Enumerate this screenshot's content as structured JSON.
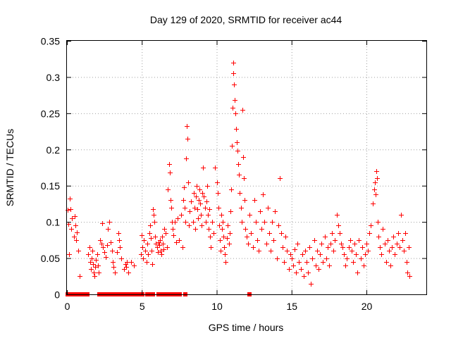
{
  "chart_data": {
    "type": "scatter",
    "title": "Day 129 of 2020, SRMTID for receiver ac44",
    "xlabel": "GPS time / hours",
    "ylabel": "SRMTID / TECUs",
    "xlim": [
      0,
      24
    ],
    "ylim": [
      0,
      0.35
    ],
    "xticks": [
      0,
      5,
      10,
      15,
      20
    ],
    "xtick_labels": [
      "0",
      "5",
      "10",
      "15",
      "20"
    ],
    "yticks": [
      0,
      0.05,
      0.1,
      0.15,
      0.2,
      0.25,
      0.3,
      0.35
    ],
    "ytick_labels": [
      "0",
      "0.05",
      "0.1",
      "0.15",
      "0.2",
      "0.25",
      "0.3",
      "0.35"
    ],
    "grid": true,
    "marker": "plus",
    "series": [
      {
        "name": "SRMTID",
        "color": "#ff0000",
        "points": [
          [
            0.05,
            0.117
          ],
          [
            0.1,
            0.097
          ],
          [
            0.15,
            0.055
          ],
          [
            0.2,
            0.132
          ],
          [
            0.25,
            0.118
          ],
          [
            0.3,
            0.09
          ],
          [
            0.35,
            0.105
          ],
          [
            0.45,
            0.08
          ],
          [
            0.5,
            0.108
          ],
          [
            0.55,
            0.095
          ],
          [
            0.6,
            0.075
          ],
          [
            0.65,
            0.086
          ],
          [
            0.75,
            0.06
          ],
          [
            0.85,
            0.025
          ],
          [
            1.4,
            0.055
          ],
          [
            1.5,
            0.065
          ],
          [
            1.55,
            0.045
          ],
          [
            1.6,
            0.035
          ],
          [
            1.65,
            0.05
          ],
          [
            1.7,
            0.06
          ],
          [
            1.75,
            0.042
          ],
          [
            1.8,
            0.03
          ],
          [
            1.85,
            0.025
          ],
          [
            1.9,
            0.038
          ],
          [
            1.95,
            0.048
          ],
          [
            2.0,
            0.055
          ],
          [
            2.05,
            0.04
          ],
          [
            2.1,
            0.03
          ],
          [
            2.2,
            0.075
          ],
          [
            2.3,
            0.07
          ],
          [
            2.35,
            0.098
          ],
          [
            2.4,
            0.065
          ],
          [
            2.5,
            0.058
          ],
          [
            2.6,
            0.052
          ],
          [
            2.7,
            0.068
          ],
          [
            2.75,
            0.09
          ],
          [
            2.8,
            0.1
          ],
          [
            2.9,
            0.072
          ],
          [
            3.0,
            0.06
          ],
          [
            3.05,
            0.045
          ],
          [
            3.1,
            0.038
          ],
          [
            3.2,
            0.03
          ],
          [
            3.35,
            0.058
          ],
          [
            3.45,
            0.085
          ],
          [
            3.5,
            0.075
          ],
          [
            3.55,
            0.065
          ],
          [
            3.6,
            0.05
          ],
          [
            3.8,
            0.035
          ],
          [
            3.9,
            0.042
          ],
          [
            3.95,
            0.038
          ],
          [
            4.0,
            0.045
          ],
          [
            4.1,
            0.03
          ],
          [
            4.3,
            0.045
          ],
          [
            4.45,
            0.04
          ],
          [
            4.95,
            0.055
          ],
          [
            5.0,
            0.082
          ],
          [
            5.05,
            0.065
          ],
          [
            5.1,
            0.05
          ],
          [
            5.15,
            0.075
          ],
          [
            5.2,
            0.06
          ],
          [
            5.3,
            0.045
          ],
          [
            5.35,
            0.07
          ],
          [
            5.4,
            0.055
          ],
          [
            5.5,
            0.085
          ],
          [
            5.55,
            0.095
          ],
          [
            5.6,
            0.078
          ],
          [
            5.65,
            0.06
          ],
          [
            5.7,
            0.042
          ],
          [
            5.75,
            0.118
          ],
          [
            5.8,
            0.11
          ],
          [
            5.85,
            0.1
          ],
          [
            5.9,
            0.08
          ],
          [
            5.95,
            0.07
          ],
          [
            6.0,
            0.065
          ],
          [
            6.05,
            0.058
          ],
          [
            6.1,
            0.072
          ],
          [
            6.15,
            0.068
          ],
          [
            6.2,
            0.075
          ],
          [
            6.25,
            0.06
          ],
          [
            6.3,
            0.055
          ],
          [
            6.35,
            0.08
          ],
          [
            6.4,
            0.07
          ],
          [
            6.45,
            0.062
          ],
          [
            6.5,
            0.09
          ],
          [
            6.6,
            0.085
          ],
          [
            6.7,
            0.065
          ],
          [
            6.75,
            0.145
          ],
          [
            6.8,
            0.18
          ],
          [
            6.85,
            0.168
          ],
          [
            6.9,
            0.13
          ],
          [
            6.95,
            0.12
          ],
          [
            7.0,
            0.1
          ],
          [
            7.05,
            0.09
          ],
          [
            7.1,
            0.082
          ],
          [
            7.2,
            0.1
          ],
          [
            7.3,
            0.072
          ],
          [
            7.4,
            0.105
          ],
          [
            7.5,
            0.075
          ],
          [
            7.6,
            0.11
          ],
          [
            7.7,
            0.065
          ],
          [
            7.75,
            0.13
          ],
          [
            7.8,
            0.148
          ],
          [
            7.85,
            0.12
          ],
          [
            7.9,
            0.1
          ],
          [
            7.95,
            0.188
          ],
          [
            8.0,
            0.232
          ],
          [
            8.05,
            0.215
          ],
          [
            8.1,
            0.155
          ],
          [
            8.15,
            0.095
          ],
          [
            8.2,
            0.115
          ],
          [
            8.3,
            0.128
          ],
          [
            8.4,
            0.1
          ],
          [
            8.45,
            0.14
          ],
          [
            8.5,
            0.12
          ],
          [
            8.55,
            0.09
          ],
          [
            8.6,
            0.135
          ],
          [
            8.65,
            0.15
          ],
          [
            8.7,
            0.118
          ],
          [
            8.75,
            0.105
          ],
          [
            8.8,
            0.13
          ],
          [
            8.85,
            0.145
          ],
          [
            8.9,
            0.125
          ],
          [
            8.95,
            0.11
          ],
          [
            9.0,
            0.095
          ],
          [
            9.05,
            0.14
          ],
          [
            9.1,
            0.175
          ],
          [
            9.15,
            0.135
          ],
          [
            9.2,
            0.12
          ],
          [
            9.25,
            0.1
          ],
          [
            9.3,
            0.128
          ],
          [
            9.35,
            0.15
          ],
          [
            9.4,
            0.11
          ],
          [
            9.45,
            0.09
          ],
          [
            9.5,
            0.118
          ],
          [
            9.55,
            0.08
          ],
          [
            9.6,
            0.065
          ],
          [
            9.7,
            0.1
          ],
          [
            9.8,
            0.085
          ],
          [
            9.9,
            0.175
          ],
          [
            10.0,
            0.155
          ],
          [
            10.05,
            0.14
          ],
          [
            10.1,
            0.12
          ],
          [
            10.15,
            0.095
          ],
          [
            10.2,
            0.075
          ],
          [
            10.25,
            0.06
          ],
          [
            10.3,
            0.11
          ],
          [
            10.35,
            0.09
          ],
          [
            10.4,
            0.1
          ],
          [
            10.45,
            0.08
          ],
          [
            10.5,
            0.065
          ],
          [
            10.55,
            0.055
          ],
          [
            10.6,
            0.045
          ],
          [
            10.7,
            0.078
          ],
          [
            10.75,
            0.095
          ],
          [
            10.8,
            0.07
          ],
          [
            10.85,
            0.085
          ],
          [
            10.9,
            0.115
          ],
          [
            10.95,
            0.145
          ],
          [
            11.0,
            0.205
          ],
          [
            11.05,
            0.258
          ],
          [
            11.1,
            0.32
          ],
          [
            11.12,
            0.305
          ],
          [
            11.15,
            0.29
          ],
          [
            11.2,
            0.268
          ],
          [
            11.25,
            0.25
          ],
          [
            11.3,
            0.228
          ],
          [
            11.35,
            0.21
          ],
          [
            11.4,
            0.198
          ],
          [
            11.45,
            0.18
          ],
          [
            11.5,
            0.165
          ],
          [
            11.55,
            0.14
          ],
          [
            11.6,
            0.12
          ],
          [
            11.65,
            0.1
          ],
          [
            11.7,
            0.255
          ],
          [
            11.75,
            0.19
          ],
          [
            11.8,
            0.16
          ],
          [
            11.85,
            0.13
          ],
          [
            11.9,
            0.09
          ],
          [
            12.0,
            0.08
          ],
          [
            12.1,
            0.07
          ],
          [
            12.2,
            0.11
          ],
          [
            12.3,
            0.085
          ],
          [
            12.4,
            0.065
          ],
          [
            12.5,
            0.13
          ],
          [
            12.6,
            0.1
          ],
          [
            12.7,
            0.075
          ],
          [
            12.8,
            0.06
          ],
          [
            12.9,
            0.115
          ],
          [
            13.0,
            0.09
          ],
          [
            13.1,
            0.138
          ],
          [
            13.2,
            0.1
          ],
          [
            13.3,
            0.07
          ],
          [
            13.4,
            0.12
          ],
          [
            13.5,
            0.085
          ],
          [
            13.6,
            0.06
          ],
          [
            13.7,
            0.1
          ],
          [
            13.8,
            0.075
          ],
          [
            13.9,
            0.115
          ],
          [
            14.0,
            0.05
          ],
          [
            14.1,
            0.095
          ],
          [
            14.2,
            0.16
          ],
          [
            14.3,
            0.085
          ],
          [
            14.4,
            0.065
          ],
          [
            14.5,
            0.045
          ],
          [
            14.6,
            0.08
          ],
          [
            14.7,
            0.06
          ],
          [
            14.8,
            0.035
          ],
          [
            14.9,
            0.055
          ],
          [
            15.0,
            0.05
          ],
          [
            15.1,
            0.04
          ],
          [
            15.2,
            0.062
          ],
          [
            15.3,
            0.03
          ],
          [
            15.4,
            0.07
          ],
          [
            15.5,
            0.045
          ],
          [
            15.6,
            0.035
          ],
          [
            15.7,
            0.055
          ],
          [
            15.8,
            0.025
          ],
          [
            15.9,
            0.06
          ],
          [
            16.0,
            0.045
          ],
          [
            16.1,
            0.03
          ],
          [
            16.2,
            0.065
          ],
          [
            16.3,
            0.015
          ],
          [
            16.4,
            0.05
          ],
          [
            16.5,
            0.075
          ],
          [
            16.6,
            0.04
          ],
          [
            16.7,
            0.06
          ],
          [
            16.8,
            0.035
          ],
          [
            16.9,
            0.055
          ],
          [
            17.0,
            0.07
          ],
          [
            17.1,
            0.045
          ],
          [
            17.2,
            0.08
          ],
          [
            17.3,
            0.05
          ],
          [
            17.4,
            0.065
          ],
          [
            17.5,
            0.04
          ],
          [
            17.6,
            0.07
          ],
          [
            17.7,
            0.085
          ],
          [
            17.8,
            0.06
          ],
          [
            17.9,
            0.075
          ],
          [
            18.0,
            0.11
          ],
          [
            18.1,
            0.095
          ],
          [
            18.2,
            0.085
          ],
          [
            18.3,
            0.07
          ],
          [
            18.4,
            0.065
          ],
          [
            18.5,
            0.055
          ],
          [
            18.6,
            0.04
          ],
          [
            18.7,
            0.05
          ],
          [
            18.8,
            0.065
          ],
          [
            18.9,
            0.075
          ],
          [
            19.0,
            0.06
          ],
          [
            19.1,
            0.045
          ],
          [
            19.2,
            0.07
          ],
          [
            19.3,
            0.055
          ],
          [
            19.4,
            0.03
          ],
          [
            19.5,
            0.075
          ],
          [
            19.6,
            0.05
          ],
          [
            19.7,
            0.065
          ],
          [
            19.8,
            0.04
          ],
          [
            19.9,
            0.055
          ],
          [
            20.0,
            0.07
          ],
          [
            20.1,
            0.06
          ],
          [
            20.2,
            0.085
          ],
          [
            20.3,
            0.095
          ],
          [
            20.4,
            0.125
          ],
          [
            20.5,
            0.145
          ],
          [
            20.55,
            0.155
          ],
          [
            20.6,
            0.138
          ],
          [
            20.65,
            0.17
          ],
          [
            20.7,
            0.16
          ],
          [
            20.75,
            0.1
          ],
          [
            20.8,
            0.08
          ],
          [
            20.9,
            0.065
          ],
          [
            21.0,
            0.055
          ],
          [
            21.1,
            0.09
          ],
          [
            21.2,
            0.07
          ],
          [
            21.3,
            0.045
          ],
          [
            21.4,
            0.075
          ],
          [
            21.5,
            0.06
          ],
          [
            21.6,
            0.04
          ],
          [
            21.7,
            0.065
          ],
          [
            21.8,
            0.08
          ],
          [
            21.9,
            0.055
          ],
          [
            22.0,
            0.07
          ],
          [
            22.1,
            0.085
          ],
          [
            22.2,
            0.065
          ],
          [
            22.3,
            0.11
          ],
          [
            22.4,
            0.075
          ],
          [
            22.5,
            0.06
          ],
          [
            22.6,
            0.085
          ],
          [
            22.7,
            0.045
          ],
          [
            22.75,
            0.03
          ],
          [
            22.8,
            0.065
          ],
          [
            22.85,
            0.025
          ]
        ],
        "zero_points_x": [
          0.05,
          0.15,
          0.3,
          0.45,
          0.6,
          0.75,
          0.9,
          1.05,
          1.2,
          1.35,
          2.15,
          2.3,
          2.45,
          2.6,
          2.75,
          2.95,
          3.1,
          3.3,
          3.5,
          3.65,
          3.85,
          4.05,
          4.25,
          4.45,
          4.65,
          4.85,
          5.05,
          5.35,
          5.55,
          5.75,
          6.1,
          6.4,
          6.65,
          6.9,
          7.1,
          7.3,
          7.55,
          7.9,
          12.2
        ]
      }
    ]
  }
}
